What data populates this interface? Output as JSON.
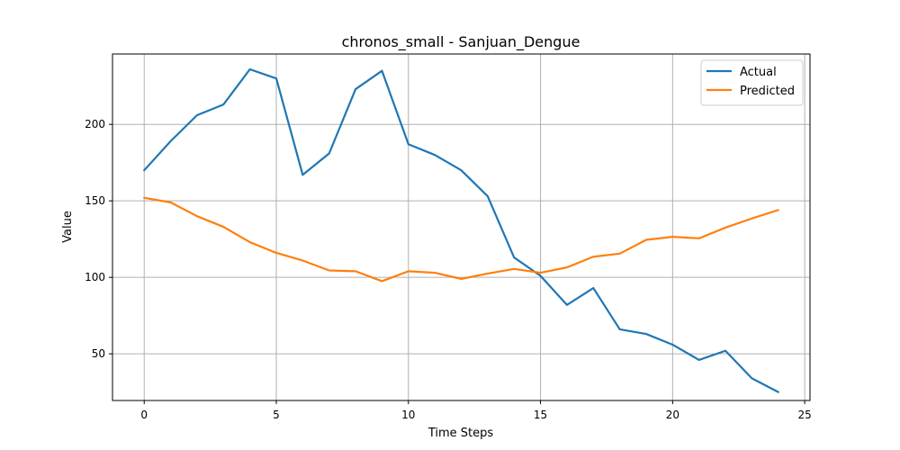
{
  "chart_data": {
    "type": "line",
    "title": "chronos_small - Sanjuan_Dengue",
    "xlabel": "Time Steps",
    "ylabel": "Value",
    "x": [
      0,
      1,
      2,
      3,
      4,
      5,
      6,
      7,
      8,
      9,
      10,
      11,
      12,
      13,
      14,
      15,
      16,
      17,
      18,
      19,
      20,
      21,
      22,
      23,
      24
    ],
    "xlim": [
      -1.2,
      25.2
    ],
    "ylim": [
      19.5,
      246
    ],
    "xticks": [
      0,
      5,
      10,
      15,
      20,
      25
    ],
    "yticks": [
      50,
      100,
      150,
      200
    ],
    "grid": true,
    "legend_position": "top-right",
    "series": [
      {
        "name": "Actual",
        "color": "#1f77b4",
        "values": [
          170,
          189,
          206,
          213,
          236,
          230,
          167,
          181,
          223,
          235,
          187,
          180,
          170,
          153,
          113,
          101,
          82,
          93,
          66,
          63,
          56,
          46,
          52,
          34,
          25
        ]
      },
      {
        "name": "Predicted",
        "color": "#ff7f0e",
        "values": [
          152,
          149,
          140,
          133,
          123,
          116,
          111,
          104.5,
          104,
          97.5,
          104,
          103,
          99,
          102.5,
          105.5,
          103,
          106.5,
          113.5,
          115.5,
          124.5,
          126.5,
          125.5,
          132.5,
          138.5,
          144
        ]
      }
    ]
  }
}
